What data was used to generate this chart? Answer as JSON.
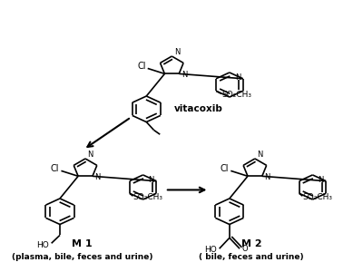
{
  "bg_color": "#ffffff",
  "vitacoxib_label": "vitacoxib",
  "m1_label": "M 1",
  "m2_label": "M 2",
  "m1_sub": "(plasma, bile, feces and urine)",
  "m2_sub": "( bile, feces and urine)"
}
